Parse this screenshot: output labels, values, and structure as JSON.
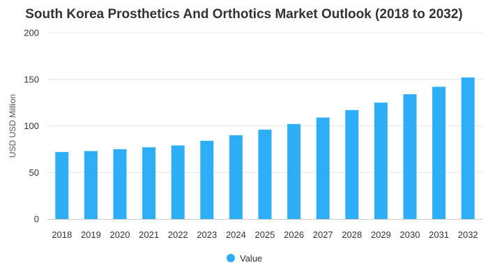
{
  "chart_data": {
    "type": "bar",
    "title": "South Korea Prosthetics And Orthotics Market Outlook (2018 to 2032)",
    "xlabel": "",
    "ylabel": "USD USD Million",
    "ylim": [
      0,
      200
    ],
    "yticks": [
      0,
      50,
      100,
      150,
      200
    ],
    "grid": true,
    "legend_position": "bottom",
    "categories": [
      "2018",
      "2019",
      "2020",
      "2021",
      "2022",
      "2023",
      "2024",
      "2025",
      "2026",
      "2027",
      "2028",
      "2029",
      "2030",
      "2031",
      "2032"
    ],
    "series": [
      {
        "name": "Value",
        "color": "#2EAEF7",
        "values": [
          72,
          73,
          75,
          77,
          79,
          84,
          90,
          96,
          102,
          109,
          117,
          125,
          134,
          142,
          152
        ]
      }
    ]
  }
}
